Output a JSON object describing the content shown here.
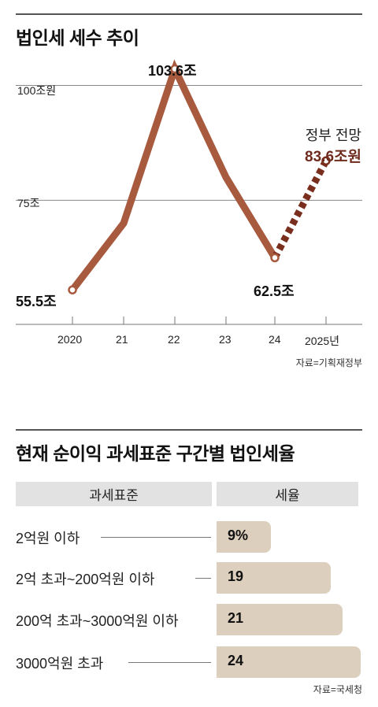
{
  "chart1": {
    "title": "법인세 세수 추이",
    "source": "자료=기획재정부",
    "y_ref_labels": [
      "100조원",
      "75조"
    ],
    "projection_label": "정부 전망",
    "projection_value_label": "83.6조원",
    "colors": {
      "line": "#a75a3e",
      "projection": "#7a2f1e",
      "accent_text": "#6e2b1d"
    }
  },
  "chart2": {
    "title": "현재 순이익 과세표준 구간별 법인세율",
    "header_left": "과세표준",
    "header_right": "세율",
    "source": "자료=국세청",
    "bar_color": "#ddcfbd"
  },
  "chart_data": [
    {
      "type": "line",
      "title": "법인세 세수 추이",
      "x": [
        "2020",
        "21",
        "22",
        "23",
        "24",
        "2025년"
      ],
      "values": [
        55.5,
        70,
        103.6,
        80,
        62.5,
        83.6
      ],
      "point_labels": [
        "55.5조",
        "",
        "103.6조",
        "",
        "62.5조",
        "83.6조원"
      ],
      "projected_from_index": 4,
      "reference_lines": [
        100,
        75
      ],
      "unit": "조원",
      "ylim": [
        48,
        109
      ],
      "grid": "horizontal reference lines"
    },
    {
      "type": "bar",
      "orientation": "horizontal",
      "title": "현재 순이익 과세표준 구간별 법인세율",
      "categories": [
        "2억원 이하",
        "2억 초과~200억원 이하",
        "200억 초과~3000억원 이하",
        "3000억원 초과"
      ],
      "values": [
        9,
        19,
        21,
        24
      ],
      "value_labels": [
        "9%",
        "19",
        "21",
        "24"
      ],
      "unit": "%"
    }
  ]
}
